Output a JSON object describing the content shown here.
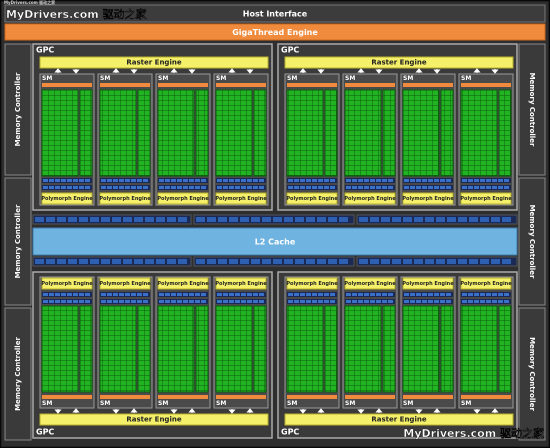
{
  "watermark_small": "MyDrivers.com 驱动之家",
  "watermark_top": "MyDrivers.com 驱动之家",
  "watermark_bottom": "MyDrivers.com 驱动之家",
  "host_interface": "Host Interface",
  "gigathread_engine": "GigaThread Engine",
  "l2_cache": "L2 Cache",
  "memory_controllers": [
    "Memory Controller",
    "Memory Controller",
    "Memory Controller",
    "Memory Controller",
    "Memory Controller",
    "Memory Controller"
  ],
  "gpcs": [
    {
      "label": "GPC",
      "raster_engine": "Raster Engine",
      "sms": [
        {
          "label": "SM",
          "polymorph_engine": "Polymorph Engine"
        },
        {
          "label": "SM",
          "polymorph_engine": "Polymorph Engine"
        },
        {
          "label": "SM",
          "polymorph_engine": "Polymorph Engine"
        },
        {
          "label": "SM",
          "polymorph_engine": "Polymorph Engine"
        }
      ]
    },
    {
      "label": "GPC",
      "raster_engine": "Raster Engine",
      "sms": [
        {
          "label": "SM",
          "polymorph_engine": "Polymorph Engine"
        },
        {
          "label": "SM",
          "polymorph_engine": "Polymorph Engine"
        },
        {
          "label": "SM",
          "polymorph_engine": "Polymorph Engine"
        },
        {
          "label": "SM",
          "polymorph_engine": "Polymorph Engine"
        }
      ]
    },
    {
      "label": "GPC",
      "raster_engine": "Raster Engine",
      "sms": [
        {
          "label": "SM",
          "polymorph_engine": "Polymorph Engine"
        },
        {
          "label": "SM",
          "polymorph_engine": "Polymorph Engine"
        },
        {
          "label": "SM",
          "polymorph_engine": "Polymorph Engine"
        },
        {
          "label": "SM",
          "polymorph_engine": "Polymorph Engine"
        }
      ]
    },
    {
      "label": "GPC",
      "raster_engine": "Raster Engine",
      "sms": [
        {
          "label": "SM",
          "polymorph_engine": "Polymorph Engine"
        },
        {
          "label": "SM",
          "polymorph_engine": "Polymorph Engine"
        },
        {
          "label": "SM",
          "polymorph_engine": "Polymorph Engine"
        },
        {
          "label": "SM",
          "polymorph_engine": "Polymorph Engine"
        }
      ]
    }
  ]
}
